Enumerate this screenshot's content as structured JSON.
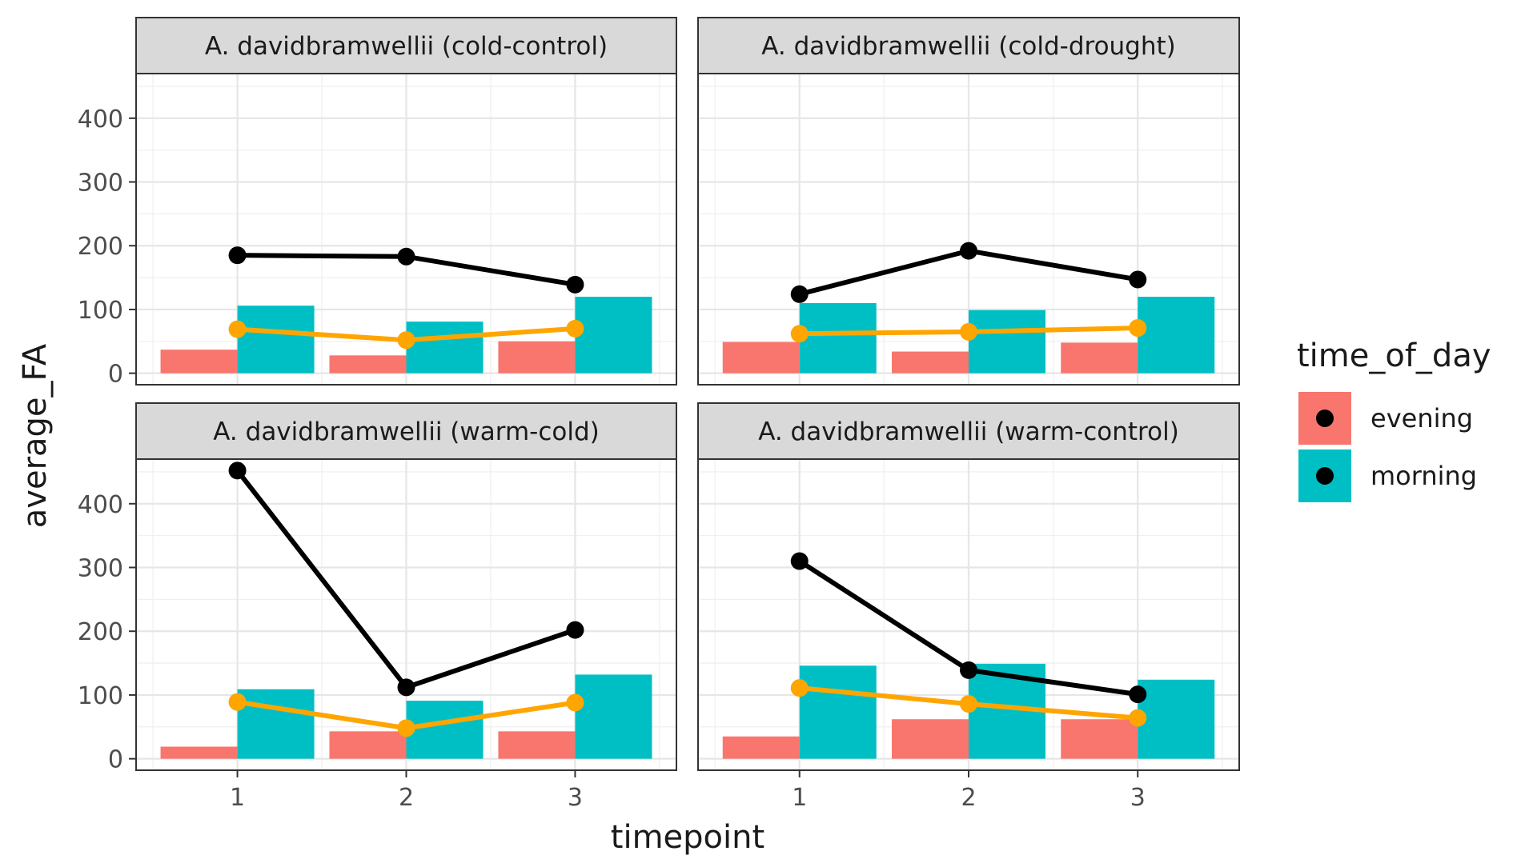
{
  "chart_data": {
    "type": "bar",
    "xlabel": "timepoint",
    "ylabel": "average_FA",
    "x": [
      1,
      2,
      3
    ],
    "ylim": [
      -18,
      470
    ],
    "yticks": [
      0,
      100,
      200,
      300,
      400
    ],
    "grid": true,
    "legend": {
      "title": "time_of_day",
      "position": "right",
      "entries": [
        {
          "label": "evening",
          "color": "#F8766D"
        },
        {
          "label": "morning",
          "color": "#00BFC4"
        }
      ]
    },
    "line_colors": {
      "black_series": "#000000",
      "orange_series": "#FFA500"
    },
    "panels": [
      {
        "title": "A. davidbramwellii (cold-control)",
        "bars": {
          "evening": [
            37,
            28,
            50
          ],
          "morning": [
            106,
            81,
            120
          ]
        },
        "black_line": [
          185,
          183,
          139
        ],
        "orange_line": [
          69,
          52,
          70
        ]
      },
      {
        "title": "A. davidbramwellii (cold-drought)",
        "bars": {
          "evening": [
            49,
            34,
            48
          ],
          "morning": [
            110,
            99,
            120
          ]
        },
        "black_line": [
          124,
          192,
          147
        ],
        "orange_line": [
          62,
          65,
          71
        ]
      },
      {
        "title": "A. davidbramwellii (warm-cold)",
        "bars": {
          "evening": [
            19,
            43,
            43
          ],
          "morning": [
            109,
            91,
            132
          ]
        },
        "black_line": [
          452,
          112,
          202
        ],
        "orange_line": [
          89,
          48,
          88
        ]
      },
      {
        "title": "A. davidbramwellii (warm-control)",
        "bars": {
          "evening": [
            35,
            62,
            62
          ],
          "morning": [
            146,
            149,
            124
          ]
        },
        "black_line": [
          310,
          139,
          101
        ],
        "orange_line": [
          111,
          86,
          64
        ]
      }
    ]
  }
}
